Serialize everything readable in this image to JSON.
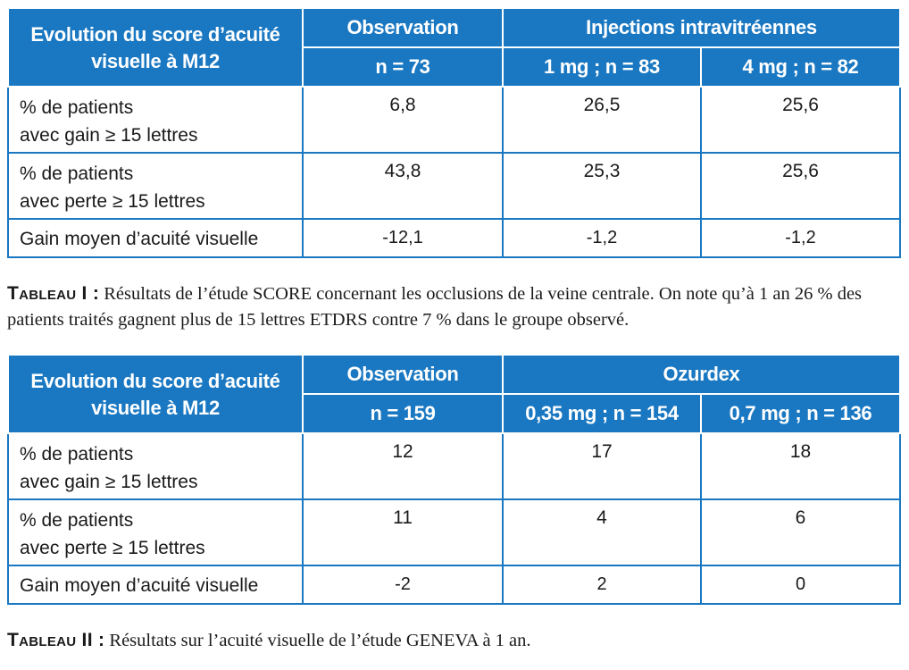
{
  "table1": {
    "header": {
      "corner": "Evolution du score d’acuité visuelle à M12",
      "group_observation": "Observation",
      "group_treatment": "Injections intravitréennes",
      "sub_observation": "n = 73",
      "sub_1": "1 mg ; n = 83",
      "sub_2": "4 mg ; n = 82"
    },
    "rows": [
      {
        "label": "% de patients\navec gain ≥ 15 lettres",
        "values": [
          "6,8",
          "26,5",
          "25,6"
        ]
      },
      {
        "label": "% de patients\navec perte ≥ 15 lettres",
        "values": [
          "43,8",
          "25,3",
          "25,6"
        ]
      },
      {
        "label": "Gain moyen d’acuité visuelle",
        "values": [
          "-12,1",
          "-1,2",
          "-1,2"
        ]
      }
    ],
    "caption_label": "Tableau I :",
    "caption_text": " Résultats de l’étude SCORE concernant les occlusions de la veine centrale. On note qu’à 1 an 26 % des patients traités gagnent plus de 15 lettres ETDRS contre 7 % dans le groupe observé."
  },
  "table2": {
    "header": {
      "corner": "Evolution du score d’acuité visuelle à M12",
      "group_observation": "Observation",
      "group_treatment": "Ozurdex",
      "sub_observation": "n = 159",
      "sub_1": "0,35 mg ; n = 154",
      "sub_2": "0,7 mg ; n = 136"
    },
    "rows": [
      {
        "label": "% de patients\navec gain ≥ 15 lettres",
        "values": [
          "12",
          "17",
          "18"
        ]
      },
      {
        "label": "% de patients\navec perte ≥ 15 lettres",
        "values": [
          "11",
          "4",
          "6"
        ]
      },
      {
        "label": "Gain moyen d’acuité visuelle",
        "values": [
          "-2",
          "2",
          "0"
        ]
      }
    ],
    "caption_label": "Tableau II :",
    "caption_text": " Résultats sur l’acuité visuelle de l’étude GENEVA à 1 an."
  },
  "colors": {
    "header_bg": "#1a78c2",
    "border": "#1a78c2",
    "header_text": "#ffffff"
  }
}
